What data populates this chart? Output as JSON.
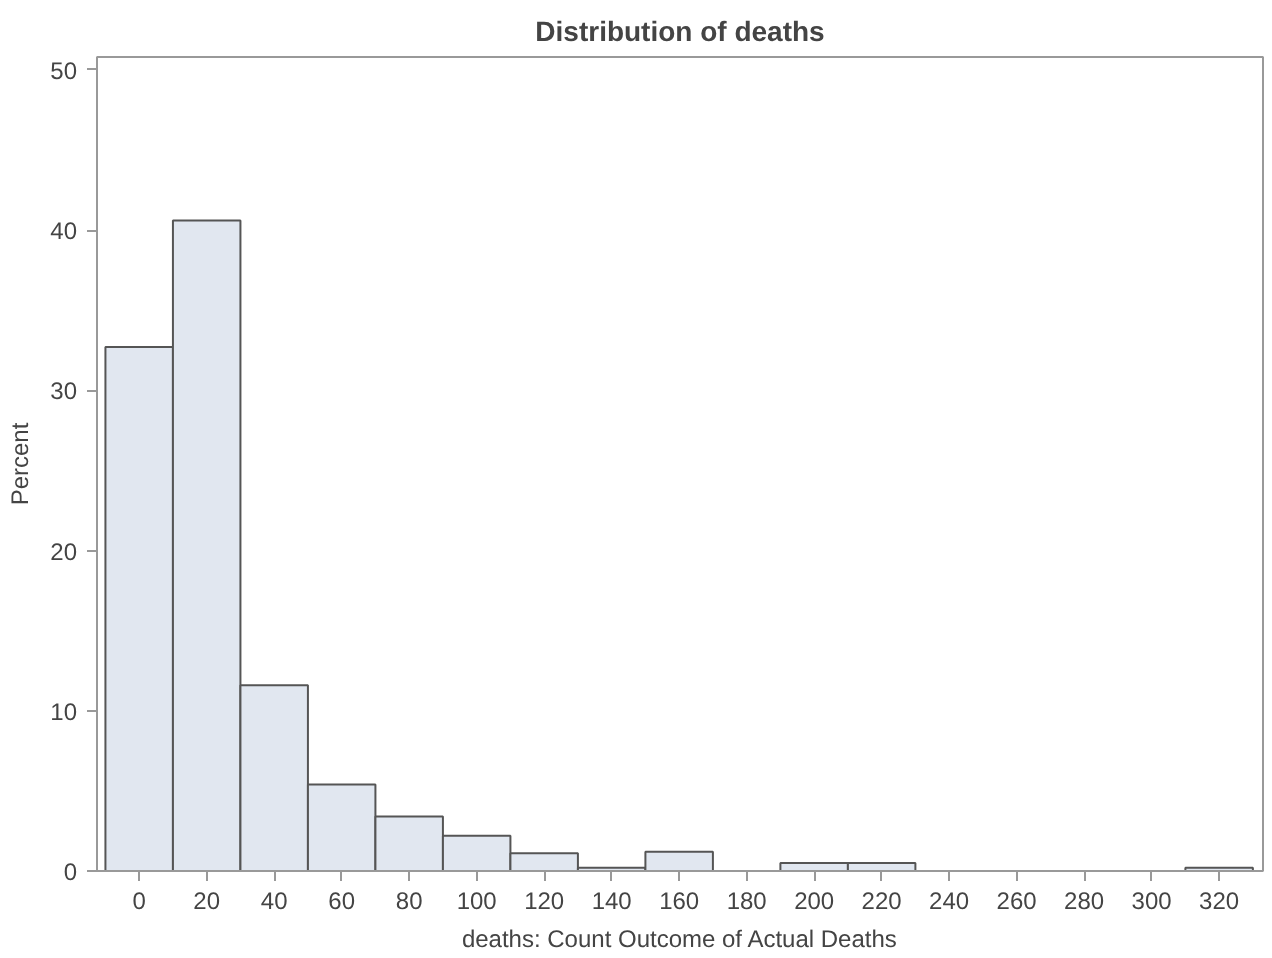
{
  "chart_data": {
    "type": "histogram",
    "title": "Distribution of deaths",
    "xlabel": "deaths: Count Outcome of Actual Deaths",
    "ylabel": "Percent",
    "bins": [
      -10,
      10,
      30,
      50,
      70,
      90,
      110,
      130,
      150,
      170,
      190,
      210,
      230,
      250,
      270,
      290,
      310,
      330
    ],
    "values": [
      32.7,
      40.6,
      11.6,
      5.4,
      3.4,
      2.2,
      1.1,
      0.2,
      1.2,
      0,
      0.5,
      0.5,
      0,
      0,
      0,
      0,
      0.2
    ],
    "color": "#e1e7f0",
    "xlim": [
      -12.5,
      333
    ],
    "xticks": [
      0,
      20,
      40,
      60,
      80,
      100,
      120,
      140,
      160,
      180,
      200,
      220,
      240,
      260,
      280,
      300,
      320
    ],
    "ylim": [
      0,
      50.8
    ],
    "yticks": [
      0,
      10,
      20,
      30,
      40,
      50
    ],
    "grid": false
  }
}
